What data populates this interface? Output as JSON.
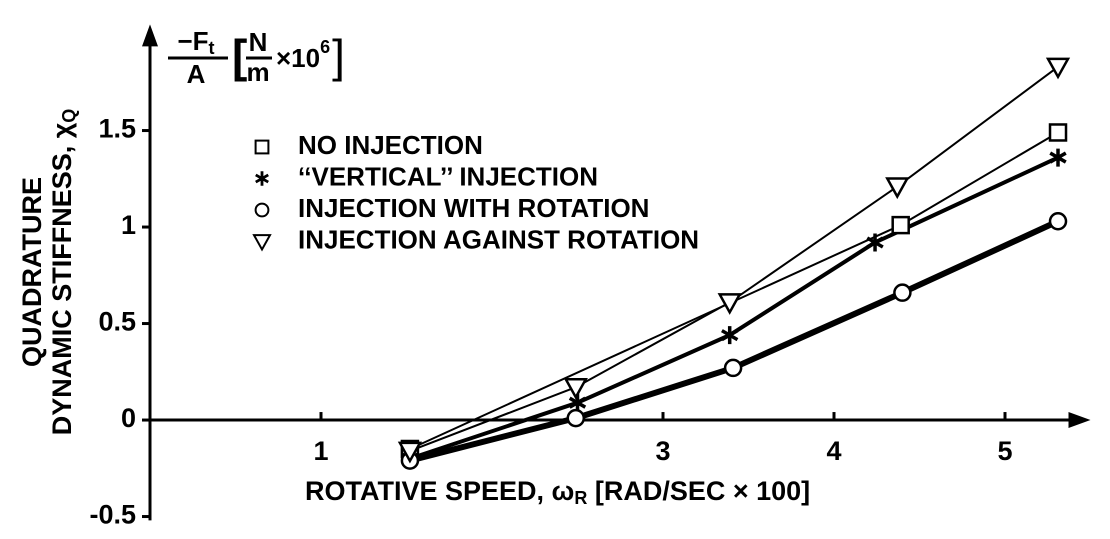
{
  "chart_data": {
    "type": "line",
    "y_label_lines": [
      "QUADRATURE",
      "DYNAMIC STIFFNESS, χ"
    ],
    "y_label_subscript": "Q",
    "y_unit": {
      "numerator": "−F",
      "numerator_subscript": "t",
      "denominator": "A",
      "bracket_open": "[",
      "unit_numerator": "N",
      "unit_denominator": "m",
      "multiplier": "×10",
      "exponent": "6",
      "bracket_close": "]"
    },
    "x_label": "ROTATIVE SPEED, ω",
    "x_label_subscript": "R",
    "x_label_suffix": " [RAD/SEC × 100]",
    "xlim": [
      0,
      5.5
    ],
    "ylim": [
      -0.52,
      2.05
    ],
    "xticks": [
      1,
      3,
      4,
      5
    ],
    "yticks": [
      -0.5,
      0,
      0.5,
      1,
      1.5
    ],
    "legend": "upper left",
    "series": [
      {
        "name": "NO INJECTION",
        "marker": "square",
        "color": "#000000",
        "line_width": 2,
        "x": [
          1.52,
          4.39,
          5.31
        ],
        "values": [
          -0.15,
          1.01,
          1.49
        ]
      },
      {
        "name": "‘‘VERTICAL’’ INJECTION",
        "marker": "star",
        "color": "#000000",
        "line_width": 4,
        "x": [
          1.52,
          2.5,
          3.39,
          4.24,
          5.31
        ],
        "values": [
          -0.2,
          0.09,
          0.44,
          0.92,
          1.36
        ]
      },
      {
        "name": "INJECTION WITH ROTATION",
        "marker": "circle",
        "color": "#000000",
        "line_width": 6,
        "x": [
          1.52,
          2.49,
          3.41,
          4.4,
          5.31
        ],
        "values": [
          -0.21,
          0.01,
          0.27,
          0.66,
          1.03
        ]
      },
      {
        "name": "INJECTION AGAINST ROTATION",
        "marker": "triangle-down",
        "color": "#000000",
        "line_width": 2,
        "x": [
          1.52,
          2.49,
          3.39,
          4.37,
          5.31
        ],
        "values": [
          -0.16,
          0.17,
          0.61,
          1.21,
          1.83
        ]
      }
    ]
  }
}
